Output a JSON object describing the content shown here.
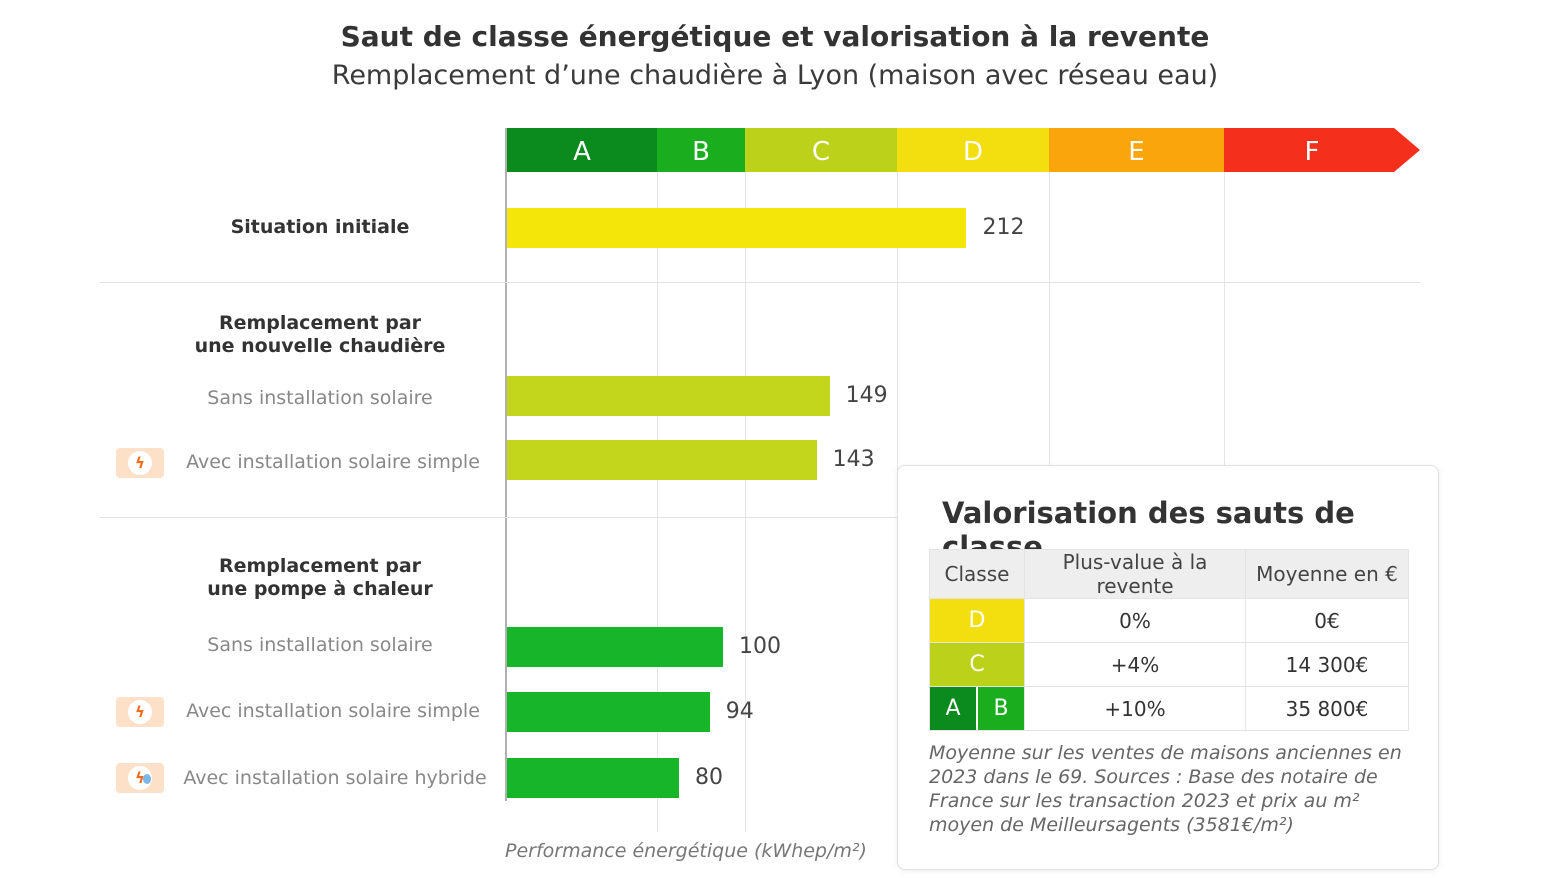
{
  "title": "Saut de classe énergétique et valorisation à la revente",
  "subtitle": "Remplacement d’une chaudière à Lyon (maison avec réseau eau)",
  "dpe_classes": [
    {
      "label": "A",
      "color": "#0b8a1d"
    },
    {
      "label": "B",
      "color": "#1aae1f"
    },
    {
      "label": "C",
      "color": "#bcd21a"
    },
    {
      "label": "D",
      "color": "#f3df10"
    },
    {
      "label": "E",
      "color": "#fba50c"
    },
    {
      "label": "F",
      "color": "#f42f1b"
    }
  ],
  "groups": {
    "initial": "Situation initiale",
    "chaudiere": "Remplacement par\nune nouvelle chaudière",
    "pompe": "Remplacement par\nune pompe à chaleur"
  },
  "icons": {
    "solar_simple": "lightning-bolt-icon",
    "solar_hybrid": "lightning-droplet-icon"
  },
  "chart_data": {
    "type": "bar",
    "orientation": "horizontal",
    "title": "Saut de classe énergétique et valorisation à la revente",
    "subtitle": "Remplacement d’une chaudière à Lyon (maison avec réseau eau)",
    "xlabel": "Performance énergétique (kWhep/m²)",
    "categories": [
      "Situation initiale",
      "Sans installation solaire",
      "Avec installation solaire simple",
      "Sans installation solaire",
      "Avec installation solaire simple",
      "Avec installation solaire hybride"
    ],
    "values": [
      212,
      149,
      143,
      100,
      94,
      80
    ],
    "bar_colors": [
      "#f5e60a",
      "#c4d61c",
      "#c4d61c",
      "#16b52a",
      "#16b52a",
      "#16b52a"
    ],
    "class_thresholds": [
      0,
      70,
      110,
      180,
      250,
      330,
      420
    ],
    "xlim": [
      0,
      420
    ],
    "grid": true
  },
  "panel": {
    "title": "Valorisation des sauts de classe",
    "headers": [
      "Classe",
      "Plus-value à la revente",
      "Moyenne en €"
    ],
    "rows": [
      {
        "classes": [
          "D"
        ],
        "colors": [
          "#f3df10"
        ],
        "plus_value": "0%",
        "moyenne": "0€"
      },
      {
        "classes": [
          "C"
        ],
        "colors": [
          "#bcd21a"
        ],
        "plus_value": "+4%",
        "moyenne": "14 300€"
      },
      {
        "classes": [
          "A",
          "B"
        ],
        "colors": [
          "#0b8a1d",
          "#1aae1f"
        ],
        "plus_value": "+10%",
        "moyenne": "35 800€"
      }
    ],
    "note": "Moyenne sur les ventes de maisons anciennes en 2023 dans le 69. Sources : Base des notaire de France sur les transaction 2023 et prix au m² moyen de Meilleursagents (3581€/m²)"
  }
}
